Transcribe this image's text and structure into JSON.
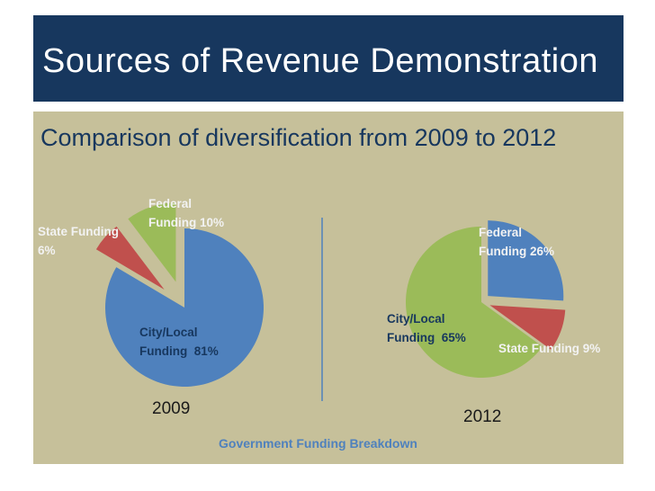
{
  "slide": {
    "title": "Sources of Revenue Demonstration",
    "subtitle": "Comparison of diversification from 2009 to 2012",
    "footer": "Government Funding Breakdown"
  },
  "chart_data": [
    {
      "type": "pie",
      "title": "2009",
      "categories": [
        "City/Local Funding",
        "State Funding",
        "Federal Funding"
      ],
      "values": [
        81,
        6,
        10
      ],
      "labels": [
        "City/Local\nFunding  81%",
        "State Funding\n6%",
        "Federal\nFunding 10%"
      ],
      "colors": [
        "#4f81bd",
        "#c0504d",
        "#9bbb59"
      ]
    },
    {
      "type": "pie",
      "title": "2012",
      "categories": [
        "Federal Funding",
        "State Funding",
        "City/Local Funding"
      ],
      "values": [
        26,
        9,
        65
      ],
      "labels": [
        "Federal\nFunding 26%",
        "State Funding 9%",
        "City/Local\nFunding  65%"
      ],
      "colors": [
        "#4f81bd",
        "#c0504d",
        "#9bbb59"
      ]
    }
  ],
  "colors": {
    "title_bg": "#17375e",
    "content_bg": "#c6c09a",
    "divider": "#4f81bd"
  }
}
